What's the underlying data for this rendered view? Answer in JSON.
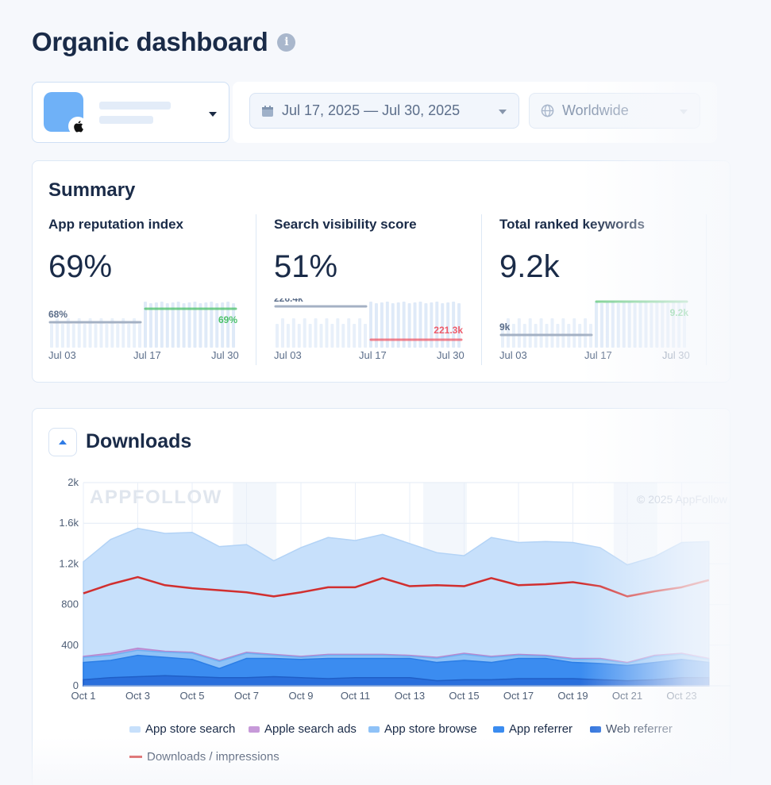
{
  "page": {
    "title": "Organic dashboard"
  },
  "filters": {
    "date_range": "Jul 17, 2025 — Jul 30, 2025",
    "region": "Worldwide"
  },
  "summary": {
    "title": "Summary",
    "metrics": [
      {
        "label": "App reputation index",
        "value": "69%",
        "prev_label": "68%",
        "curr_label": "69%",
        "trend_color": "#4cc16a",
        "dates": [
          "Jul 03",
          "Jul 17",
          "Jul 30"
        ]
      },
      {
        "label": "Search visibility score",
        "value": "51%",
        "prev_label": "226.4k",
        "curr_label": "221.3k",
        "trend_color": "#ef5b6a",
        "dates": [
          "Jul 03",
          "Jul 17",
          "Jul 30"
        ]
      },
      {
        "label": "Total ranked keywords",
        "value": "9.2k",
        "prev_label": "9k",
        "curr_label": "9.2k",
        "trend_color": "#4cc16a",
        "dates": [
          "Jul 03",
          "Jul 17",
          "Jul 30"
        ]
      }
    ]
  },
  "downloads": {
    "title": "Downloads",
    "watermark": "APPFOLLOW",
    "copyright": "© 2025 AppFollow",
    "legend": [
      {
        "label": "App store search",
        "color": "#c7e0fb"
      },
      {
        "label": "Apple search ads",
        "color": "#c79ad9"
      },
      {
        "label": "App store browse",
        "color": "#8fc2f7"
      },
      {
        "label": "App referrer",
        "color": "#3b8cf0"
      },
      {
        "label": "Web referrer",
        "color": "#2a6fdc"
      },
      {
        "label": "Downloads / impressions",
        "color": "#d12f2f"
      }
    ]
  },
  "chart_data": {
    "type": "area",
    "x": [
      "Oct 1",
      "Oct 2",
      "Oct 3",
      "Oct 4",
      "Oct 5",
      "Oct 6",
      "Oct 7",
      "Oct 8",
      "Oct 9",
      "Oct 10",
      "Oct 11",
      "Oct 12",
      "Oct 13",
      "Oct 14",
      "Oct 15",
      "Oct 16",
      "Oct 17",
      "Oct 18",
      "Oct 19",
      "Oct 20",
      "Oct 21",
      "Oct 22",
      "Oct 23",
      "Oct 24"
    ],
    "x_tick_labels": [
      "Oct 1",
      "Oct 3",
      "Oct 5",
      "Oct 7",
      "Oct 9",
      "Oct 11",
      "Oct 13",
      "Oct 15",
      "Oct 17",
      "Oct 19",
      "Oct 21",
      "Oct 23"
    ],
    "ylim": [
      0,
      2000
    ],
    "y_tick_labels": [
      "0",
      "400",
      "800",
      "1.2k",
      "1.6k",
      "2k"
    ],
    "series": [
      {
        "name": "App store search",
        "values": [
          1220,
          1440,
          1550,
          1500,
          1510,
          1370,
          1390,
          1230,
          1360,
          1460,
          1430,
          1490,
          1400,
          1310,
          1280,
          1460,
          1410,
          1420,
          1410,
          1360,
          1190,
          1270,
          1410,
          1420
        ]
      },
      {
        "name": "Apple search ads",
        "values": [
          290,
          320,
          370,
          340,
          330,
          250,
          330,
          310,
          290,
          310,
          310,
          310,
          300,
          280,
          320,
          290,
          310,
          300,
          270,
          270,
          230,
          300,
          320,
          270
        ]
      },
      {
        "name": "App store browse",
        "values": [
          280,
          300,
          350,
          330,
          320,
          240,
          320,
          300,
          280,
          300,
          300,
          300,
          290,
          270,
          310,
          280,
          300,
          290,
          260,
          260,
          220,
          290,
          310,
          260
        ]
      },
      {
        "name": "App referrer",
        "values": [
          230,
          250,
          300,
          280,
          260,
          170,
          270,
          270,
          260,
          270,
          270,
          270,
          270,
          230,
          250,
          230,
          270,
          270,
          230,
          220,
          200,
          230,
          260,
          230
        ]
      },
      {
        "name": "Web referrer",
        "values": [
          60,
          80,
          90,
          100,
          90,
          80,
          80,
          90,
          80,
          70,
          80,
          80,
          80,
          50,
          60,
          60,
          70,
          70,
          70,
          60,
          50,
          60,
          80,
          80
        ]
      },
      {
        "name": "Downloads / impressions",
        "values": [
          910,
          1000,
          1070,
          990,
          960,
          940,
          920,
          880,
          920,
          970,
          970,
          1060,
          980,
          990,
          980,
          1060,
          990,
          1000,
          1020,
          980,
          880,
          930,
          970,
          1040
        ]
      }
    ]
  }
}
